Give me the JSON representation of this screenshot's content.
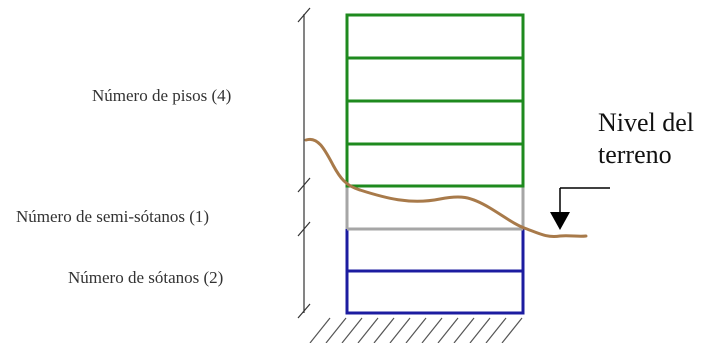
{
  "labels": {
    "floors": "Número de pisos (4)",
    "semi_basements": "Número de semi-sótanos (1)",
    "basements": "Número de sótanos (2)",
    "ground_level_line1": "Nivel del",
    "ground_level_line2": "terreno"
  },
  "building": {
    "floors": 4,
    "semi_basements": 1,
    "basements": 2
  },
  "colors": {
    "floors": "#1e8a1e",
    "semi_basement": "#a6a6a6",
    "basement": "#1c1ca0",
    "terrain": "#a87a4a",
    "text": "#333333"
  }
}
